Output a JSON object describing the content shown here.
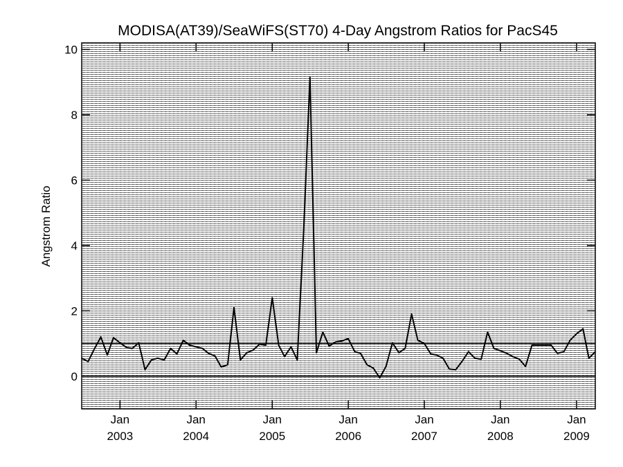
{
  "chart_data": {
    "type": "line",
    "title": "MODISA(AT39)/SeaWiFS(ST70) 4-Day Angstrom Ratios for PacS45",
    "xlabel": "",
    "ylabel": "Angstrom Ratio",
    "ylim": [
      -1,
      10.2
    ],
    "yticks": [
      0,
      2,
      4,
      6,
      8,
      10
    ],
    "xlim": [
      "2002-07-01",
      "2009-04-01"
    ],
    "xticks": [
      {
        "date": "2003-01-01",
        "month": "Jan",
        "year": "2003"
      },
      {
        "date": "2004-01-01",
        "month": "Jan",
        "year": "2004"
      },
      {
        "date": "2005-01-01",
        "month": "Jan",
        "year": "2005"
      },
      {
        "date": "2006-01-01",
        "month": "Jan",
        "year": "2006"
      },
      {
        "date": "2007-01-01",
        "month": "Jan",
        "year": "2007"
      },
      {
        "date": "2008-01-01",
        "month": "Jan",
        "year": "2008"
      },
      {
        "date": "2009-01-01",
        "month": "Jan",
        "year": "2009"
      }
    ],
    "grid": "dense vertical dotted lines every 4 days",
    "reference_lines": [
      0,
      1
    ],
    "series": [
      {
        "x": [
          "2002-07-01",
          "2002-08-01",
          "2002-09-01",
          "2002-10-01",
          "2002-11-01",
          "2002-12-01",
          "2003-01-01",
          "2003-02-01",
          "2003-03-01",
          "2003-04-01",
          "2003-05-01",
          "2003-06-01",
          "2003-07-01",
          "2003-08-01",
          "2003-09-01",
          "2003-10-01",
          "2003-11-01",
          "2003-12-01",
          "2004-01-01",
          "2004-02-01",
          "2004-03-01",
          "2004-04-01",
          "2004-05-01",
          "2004-06-01",
          "2004-07-01",
          "2004-08-01",
          "2004-09-01",
          "2004-10-01",
          "2004-11-01",
          "2004-12-01",
          "2005-01-01",
          "2005-02-01",
          "2005-03-01",
          "2005-04-01",
          "2005-05-01",
          "2005-06-01",
          "2005-07-01",
          "2005-08-01",
          "2005-09-01",
          "2005-10-01",
          "2005-11-01",
          "2005-12-01",
          "2006-01-01",
          "2006-02-01",
          "2006-03-01",
          "2006-04-01",
          "2006-05-01",
          "2006-06-01",
          "2006-07-01",
          "2006-08-01",
          "2006-09-01",
          "2006-10-01",
          "2006-11-01",
          "2006-12-01",
          "2007-01-01",
          "2007-02-01",
          "2007-03-01",
          "2007-04-01",
          "2007-05-01",
          "2007-06-01",
          "2007-07-01",
          "2007-08-01",
          "2007-09-01",
          "2007-10-01",
          "2007-11-01",
          "2007-12-01",
          "2008-01-01",
          "2008-02-01",
          "2008-03-01",
          "2008-04-01",
          "2008-05-01",
          "2008-06-01",
          "2008-07-01",
          "2008-08-01",
          "2008-09-01",
          "2008-10-01",
          "2008-11-01",
          "2008-12-01",
          "2009-01-01",
          "2009-02-01",
          "2009-03-01",
          "2009-04-01"
        ],
        "y": [
          0.55,
          0.45,
          0.85,
          1.2,
          0.65,
          1.18,
          1.02,
          0.88,
          0.85,
          1.02,
          0.2,
          0.5,
          0.55,
          0.5,
          0.85,
          0.68,
          1.1,
          0.95,
          0.9,
          0.85,
          0.7,
          0.62,
          0.28,
          0.35,
          2.1,
          0.5,
          0.72,
          0.8,
          0.98,
          0.95,
          2.4,
          0.95,
          0.6,
          0.9,
          0.5,
          4.5,
          9.15,
          0.72,
          1.35,
          0.92,
          1.05,
          1.08,
          1.15,
          0.75,
          0.7,
          0.35,
          0.25,
          -0.05,
          0.3,
          1.02,
          0.72,
          0.85,
          1.9,
          1.1,
          1.0,
          0.68,
          0.65,
          0.55,
          0.22,
          0.2,
          0.45,
          0.75,
          0.55,
          0.52,
          1.35,
          0.85,
          0.78,
          0.7,
          0.6,
          0.52,
          0.3,
          0.95,
          0.95,
          0.95,
          0.95,
          0.7,
          0.75,
          1.1,
          1.3,
          1.45,
          0.55,
          0.75
        ]
      }
    ]
  }
}
